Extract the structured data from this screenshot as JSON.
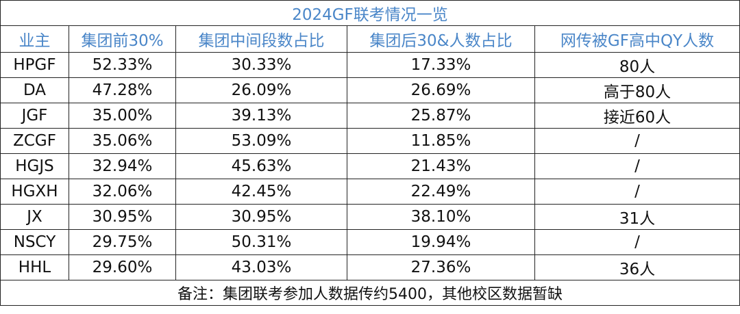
{
  "table": {
    "title": "2024GF联考情况一览",
    "header": [
      "业主",
      "集团前30%",
      "集团中间段数占比",
      "集团后30&人数占比",
      "网传被GF高中QY人数"
    ],
    "rows": [
      [
        "HPGF",
        "52.33%",
        "30.33%",
        "17.33%",
        "80人"
      ],
      [
        "DA",
        "47.28%",
        "26.09%",
        "26.69%",
        "高于80人"
      ],
      [
        "JGF",
        "35.00%",
        "39.13%",
        "25.87%",
        "接近60人"
      ],
      [
        "ZCGF",
        "35.06%",
        "53.09%",
        "11.85%",
        "/"
      ],
      [
        "HGJS",
        "32.94%",
        "45.63%",
        "21.43%",
        "/"
      ],
      [
        "HGXH",
        "32.06%",
        "42.45%",
        "22.49%",
        "/"
      ],
      [
        "JX",
        "30.95%",
        "30.95%",
        "38.10%",
        "31人"
      ],
      [
        "NSCY",
        "29.75%",
        "50.31%",
        "19.94%",
        "/"
      ],
      [
        "HHL",
        "29.60%",
        "43.03%",
        "27.36%",
        "36人"
      ]
    ],
    "footer": "备注：集团联考参加人数据传约5400，其他校区数据暂缺"
  }
}
